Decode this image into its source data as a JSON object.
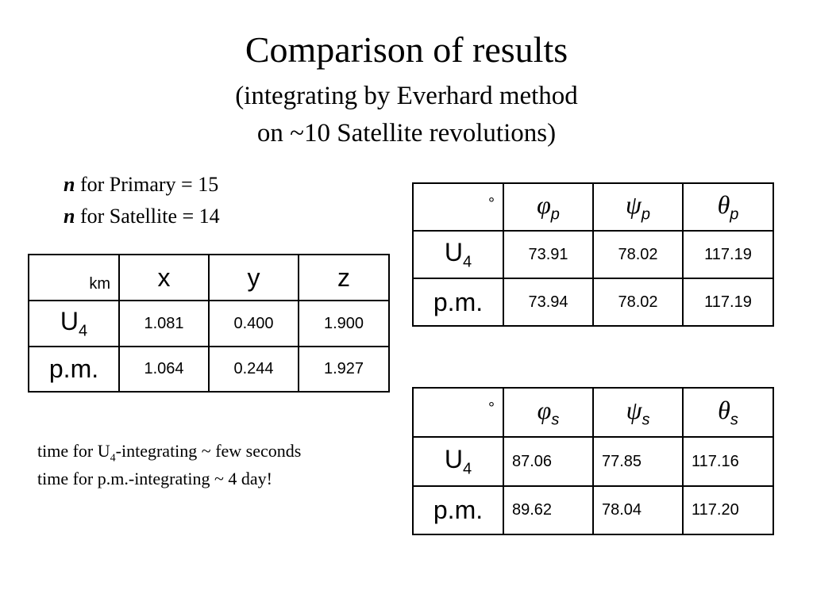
{
  "title": "Comparison of results",
  "subtitle": [
    "(integrating by Everhard method",
    "on ~10 Satellite revolutions)"
  ],
  "parameters": [
    {
      "symbol": "n",
      "text": " for Primary = 15"
    },
    {
      "symbol": "n",
      "text": " for Satellite = 14"
    }
  ],
  "tables": [
    {
      "unit": "km",
      "columns": [
        {
          "base": "x"
        },
        {
          "base": "y"
        },
        {
          "base": "z"
        }
      ],
      "rows": [
        {
          "label": {
            "base": "U",
            "sub": "4"
          },
          "values": [
            "1.081",
            "0.400",
            "1.900"
          ]
        },
        {
          "label": {
            "base": "p.m."
          },
          "values": [
            "1.064",
            "0.244",
            "1.927"
          ]
        }
      ]
    },
    {
      "unit": "°",
      "columns": [
        {
          "base": "φ",
          "sub": "p"
        },
        {
          "base": "ψ",
          "sub": "p"
        },
        {
          "base": "θ",
          "sub": "p"
        }
      ],
      "rows": [
        {
          "label": {
            "base": "U",
            "sub": "4"
          },
          "values": [
            "73.91",
            "78.02",
            "117.19"
          ]
        },
        {
          "label": {
            "base": "p.m."
          },
          "values": [
            "73.94",
            "78.02",
            "117.19"
          ]
        }
      ]
    },
    {
      "unit": "°",
      "columns": [
        {
          "base": "φ",
          "sub": "s"
        },
        {
          "base": "ψ",
          "sub": "s"
        },
        {
          "base": "θ",
          "sub": "s"
        }
      ],
      "rows": [
        {
          "label": {
            "base": "U",
            "sub": "4"
          },
          "values": [
            "87.06",
            "77.85",
            "117.16"
          ]
        },
        {
          "label": {
            "base": "p.m."
          },
          "values": [
            "89.62",
            "78.04",
            "117.20"
          ]
        }
      ]
    }
  ],
  "notes": [
    [
      "time for U",
      "4",
      "-integrating ~ few seconds"
    ],
    [
      "time for p.m.-integrating ~ 4 day!"
    ]
  ]
}
